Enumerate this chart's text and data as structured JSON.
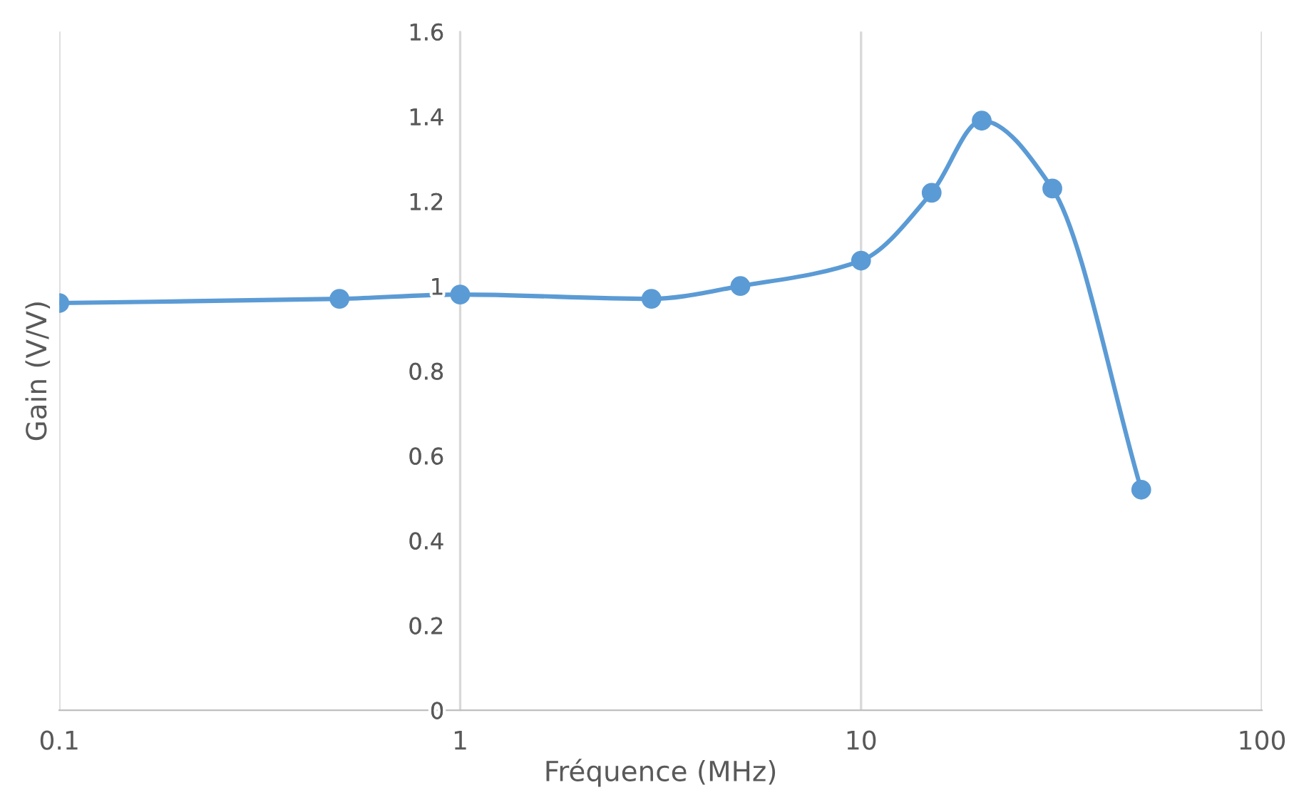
{
  "chart_data": {
    "type": "line",
    "xlabel": "Fréquence (MHz)",
    "ylabel": "Gain (V/V)",
    "x": [
      0.1,
      0.5,
      1,
      3,
      5,
      10,
      15,
      20,
      30,
      50
    ],
    "series": [
      {
        "color": "#5b9bd5",
        "values": [
          0.96,
          0.97,
          0.98,
          0.97,
          1.0,
          1.06,
          1.22,
          1.39,
          1.23,
          0.52
        ]
      }
    ],
    "log": "x",
    "xlim": [
      0.1,
      100
    ],
    "xticks": [
      0.1,
      1,
      10,
      100
    ],
    "ylim": [
      0,
      1.6
    ],
    "yticks": [
      0,
      0.2,
      0.4,
      0.6,
      0.8,
      1,
      1.2,
      1.4,
      1.6
    ],
    "grid": "x",
    "marker": "circle",
    "line_style": "solid",
    "legend": false
  }
}
